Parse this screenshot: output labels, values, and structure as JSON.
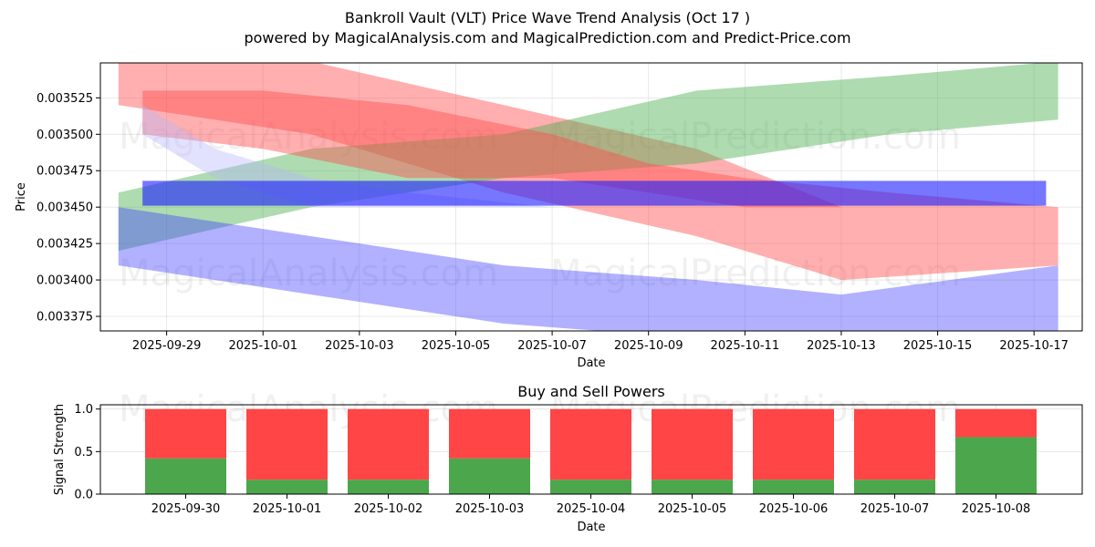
{
  "header": {
    "title_line1": "Bankroll Vault (VLT) Price Wave Trend Analysis (Oct 17 )",
    "title_line2": "powered by MagicalAnalysis.com and MagicalPrediction.com and Predict-Price.com"
  },
  "watermarks": [
    "MagicalAnalysis.com",
    "MagicalPrediction.com"
  ],
  "colors": {
    "red_band": "#ff4d4d",
    "green_band": "#4caf50",
    "blue_band": "#3b3bff",
    "lavender_band": "#b7b7ff",
    "flat_band": "#1a1aff",
    "buy": "#4ca64c",
    "sell": "#ff4545"
  },
  "chart_data": [
    {
      "type": "area",
      "title": "",
      "xlabel": "Date",
      "ylabel": "Price",
      "x_tick_labels": [
        "2025-09-29",
        "2025-10-01",
        "2025-10-03",
        "2025-10-05",
        "2025-10-07",
        "2025-10-09",
        "2025-10-11",
        "2025-10-13",
        "2025-10-15",
        "2025-10-17"
      ],
      "y_ticks": [
        0.00337,
        0.0034,
        0.00342,
        0.00345,
        0.00347,
        0.0035,
        0.00352
      ],
      "y_tick_labels": [
        "0.003375",
        "0.003400",
        "0.003425",
        "0.003450",
        "0.003475",
        "0.003500",
        "0.003525"
      ],
      "xlim": [
        "2025-09-27T15:00",
        "2025-10-18T00:00"
      ],
      "ylim": [
        0.003365,
        0.003549
      ],
      "grid": true,
      "series": [
        {
          "name": "red-wave",
          "opacity": 0.45,
          "x": [
            "2025-09-28",
            "2025-10-02",
            "2025-10-06",
            "2025-10-10",
            "2025-10-13",
            "2025-10-17T12:00"
          ],
          "upper": [
            0.00356,
            0.00355,
            0.00352,
            0.00349,
            0.00345,
            0.00345
          ],
          "lower": [
            0.00352,
            0.0035,
            0.00346,
            0.00343,
            0.0034,
            0.00341
          ]
        },
        {
          "name": "green-wave",
          "opacity": 0.45,
          "x": [
            "2025-09-28",
            "2025-10-02",
            "2025-10-06",
            "2025-10-10",
            "2025-10-14",
            "2025-10-17T12:00"
          ],
          "upper": [
            0.00346,
            0.00349,
            0.0035,
            0.00353,
            0.00354,
            0.00355
          ],
          "lower": [
            0.00342,
            0.00345,
            0.00347,
            0.00348,
            0.0035,
            0.00351
          ]
        },
        {
          "name": "mauve-wave",
          "opacity": 0.45,
          "x": [
            "2025-09-28T12:00",
            "2025-10-01",
            "2025-10-04",
            "2025-10-07",
            "2025-10-09",
            "2025-10-11",
            "2025-10-14",
            "2025-10-17T12:00"
          ],
          "upper": [
            0.00353,
            0.00353,
            0.00352,
            0.0035,
            0.00348,
            0.00347,
            0.00346,
            0.00345
          ],
          "lower": [
            0.0035,
            0.00349,
            0.00347,
            0.00347,
            0.00346,
            0.00345,
            0.00345,
            0.00345
          ]
        },
        {
          "name": "lavender-wave",
          "opacity": 0.4,
          "x": [
            "2025-09-28T12:00",
            "2025-09-30",
            "2025-10-02",
            "2025-10-04",
            "2025-10-07"
          ],
          "upper": [
            0.00352,
            0.00349,
            0.00347,
            0.00346,
            0.00345
          ],
          "lower": [
            0.0035,
            0.00347,
            0.00345,
            0.00345,
            0.00345
          ]
        },
        {
          "name": "blue-wave",
          "opacity": 0.4,
          "x": [
            "2025-09-28",
            "2025-10-02",
            "2025-10-06",
            "2025-10-10",
            "2025-10-13",
            "2025-10-17T12:00"
          ],
          "upper": [
            0.00345,
            0.00343,
            0.00341,
            0.0034,
            0.00339,
            0.00341
          ],
          "lower": [
            0.00341,
            0.00339,
            0.00337,
            0.00336,
            0.00335,
            0.00336
          ]
        },
        {
          "name": "flat-band",
          "opacity": 0.6,
          "x": [
            "2025-09-28T12:00",
            "2025-10-17T06:00"
          ],
          "upper": [
            0.003468,
            0.003468
          ],
          "lower": [
            0.003451,
            0.003451
          ]
        }
      ]
    },
    {
      "type": "bar",
      "title": "Buy and Sell Powers",
      "xlabel": "Date",
      "ylabel": "Signal Strength",
      "categories": [
        "2025-09-30",
        "2025-10-01",
        "2025-10-02",
        "2025-10-03",
        "2025-10-04",
        "2025-10-05",
        "2025-10-06",
        "2025-10-07",
        "2025-10-08"
      ],
      "y_ticks": [
        0.0,
        0.5,
        1.0
      ],
      "y_tick_labels": [
        "0.0",
        "0.5",
        "1.0"
      ],
      "ylim": [
        0,
        1.05
      ],
      "grid": true,
      "series": [
        {
          "name": "Buy",
          "values": [
            0.42,
            0.17,
            0.17,
            0.42,
            0.17,
            0.17,
            0.17,
            0.17,
            0.67
          ]
        },
        {
          "name": "Sell",
          "values": [
            0.58,
            0.83,
            0.83,
            0.58,
            0.83,
            0.83,
            0.83,
            0.83,
            0.33
          ]
        }
      ]
    }
  ]
}
